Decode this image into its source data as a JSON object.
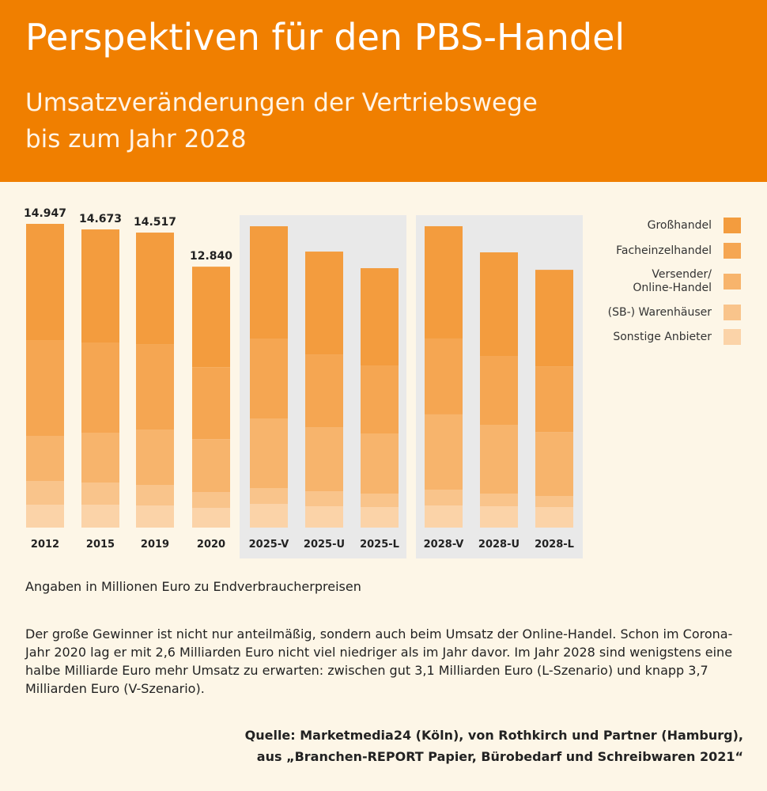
{
  "chart_data": {
    "type": "stacked_bar",
    "title": "Perspektiven für den PBS-Handel",
    "subtitle": [
      "Umsatzveränderungen der Vertriebswege",
      "bis zum Jahr 2028"
    ],
    "categories": [
      "2012",
      "2015",
      "2019",
      "2020",
      "2025-V",
      "2025-U",
      "2025-L",
      "2028-V",
      "2028-U",
      "2028-L"
    ],
    "total_labels": [
      "14.947",
      "14.673",
      "14.517",
      "12.840"
    ],
    "series": [
      {
        "name": "Sonstige Anbieter",
        "color": "#fbd3a8",
        "values": [
          1129,
          1129,
          1090,
          973,
          1168,
          1051,
          1012,
          1090,
          1051,
          1012
        ]
      },
      {
        "name": "(SB-) Warenhäuser",
        "color": "#f9c48b",
        "values": [
          1168,
          1090,
          1012,
          778,
          778,
          739,
          662,
          778,
          623,
          545
        ]
      },
      {
        "name": "Versender/\nOnline-Handel",
        "color": "#f7b46c",
        "values": [
          2218,
          2452,
          2724,
          2600,
          3425,
          3152,
          2958,
          3700,
          3386,
          3150
        ]
      },
      {
        "name": "Facheinzelhandel",
        "color": "#f5a652",
        "values": [
          4709,
          4437,
          4203,
          3541,
          3931,
          3581,
          3347,
          3736,
          3386,
          3230
        ]
      },
      {
        "name": "Großhandel",
        "color": "#f39c3e",
        "values": [
          5723,
          5565,
          5488,
          4948,
          5527,
          5060,
          4787,
          5527,
          5099,
          4748
        ]
      }
    ],
    "note": "Angaben in Millionen Euro zu Endverbraucherpreisen",
    "text": "Der große Gewinner ist nicht nur anteilmäßig, sondern auch beim Umsatz der Online-Handel. Schon im Corona-Jahr 2020 lag er mit 2,6 Milliarden Euro nicht viel niedriger als im Jahr davor. Im Jahr 2028 sind wenigstens eine halbe Milliarde Euro mehr Umsatz zu erwarten: zwischen gut 3,1 Milliarden Euro (L-Szenario) und knapp 3,7 Milliarden Euro (V-Szenario).",
    "source": [
      "Quelle: Marketmedia24 (Köln), von Rothkirch und Partner (Hamburg),",
      "aus „Branchen-REPORT Papier, Bürobedarf und Schreibwaren 2021“"
    ]
  }
}
